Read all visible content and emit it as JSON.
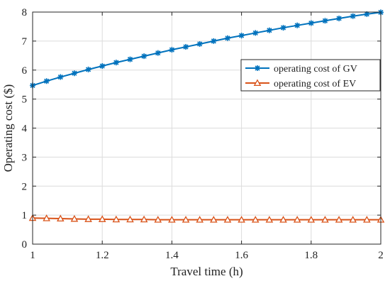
{
  "chart_data": {
    "type": "line",
    "title": "",
    "xlabel": "Travel time (h)",
    "ylabel": "Operating cost ($)",
    "xlim": [
      1,
      2
    ],
    "ylim": [
      0,
      8
    ],
    "x_ticks": [
      "1",
      "1.2",
      "1.4",
      "1.6",
      "1.8",
      "2"
    ],
    "y_ticks": [
      "0",
      "1",
      "2",
      "3",
      "4",
      "5",
      "6",
      "7",
      "8"
    ],
    "grid": true,
    "legend_position": "right",
    "series": [
      {
        "name": "operating cost of GV",
        "color": "#0072BD",
        "marker": "asterisk",
        "x": [
          1.0,
          1.04,
          1.08,
          1.12,
          1.16,
          1.2,
          1.24,
          1.28,
          1.32,
          1.36,
          1.4,
          1.44,
          1.48,
          1.52,
          1.56,
          1.6,
          1.64,
          1.68,
          1.72,
          1.76,
          1.8,
          1.84,
          1.88,
          1.92,
          1.96,
          2.0
        ],
        "values": [
          5.47,
          5.62,
          5.76,
          5.89,
          6.02,
          6.14,
          6.26,
          6.37,
          6.48,
          6.59,
          6.7,
          6.8,
          6.9,
          7.0,
          7.1,
          7.19,
          7.28,
          7.37,
          7.46,
          7.54,
          7.62,
          7.7,
          7.78,
          7.86,
          7.93,
          7.99
        ]
      },
      {
        "name": "operating cost of EV",
        "color": "#D95319",
        "marker": "triangle",
        "x": [
          1.0,
          1.04,
          1.08,
          1.12,
          1.16,
          1.2,
          1.24,
          1.28,
          1.32,
          1.36,
          1.4,
          1.44,
          1.48,
          1.52,
          1.56,
          1.6,
          1.64,
          1.68,
          1.72,
          1.76,
          1.8,
          1.84,
          1.88,
          1.92,
          1.96,
          2.0
        ],
        "values": [
          0.9,
          0.89,
          0.88,
          0.87,
          0.86,
          0.86,
          0.85,
          0.85,
          0.85,
          0.84,
          0.84,
          0.84,
          0.84,
          0.84,
          0.84,
          0.84,
          0.84,
          0.84,
          0.84,
          0.84,
          0.84,
          0.84,
          0.84,
          0.84,
          0.84,
          0.84
        ]
      }
    ]
  }
}
